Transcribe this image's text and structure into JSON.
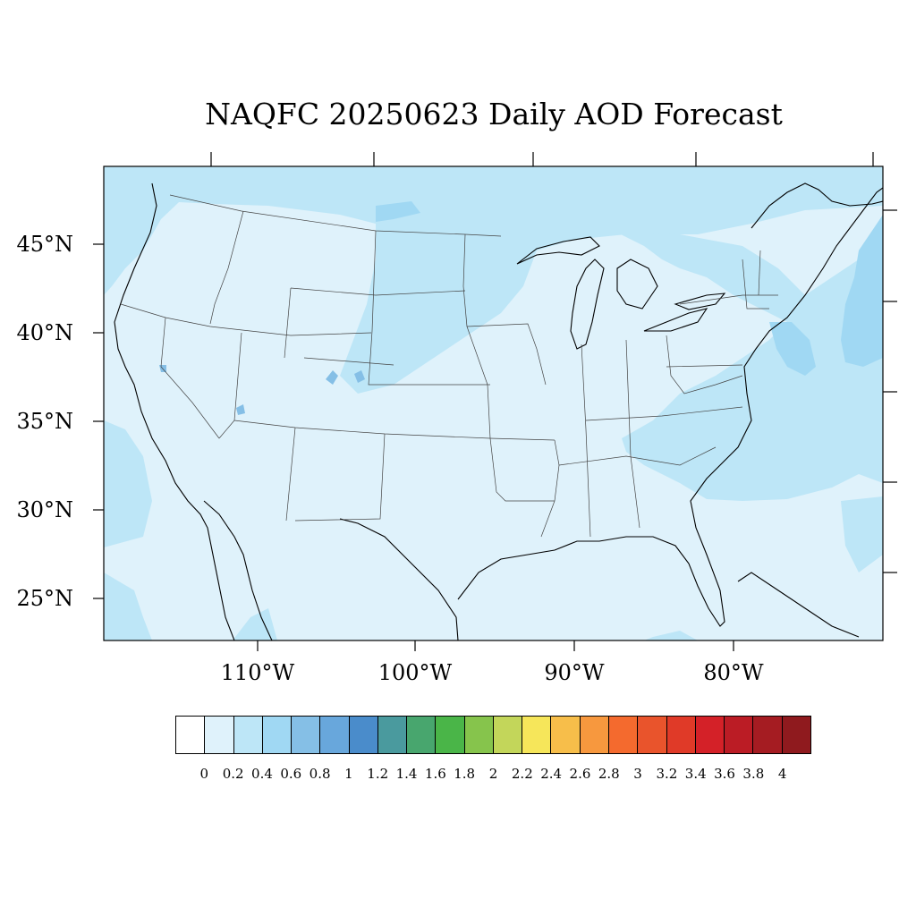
{
  "title": "NAQFC 20250623 Daily AOD Forecast",
  "lat_labels": [
    "45°N",
    "40°N",
    "35°N",
    "30°N",
    "25°N"
  ],
  "lon_labels": [
    "110°W",
    "100°W",
    "90°W",
    "80°W"
  ],
  "colorbar": {
    "labels": [
      "0",
      "0.2",
      "0.4",
      "0.6",
      "0.8",
      "1",
      "1.2",
      "1.4",
      "1.6",
      "1.8",
      "2",
      "2.2",
      "2.4",
      "2.6",
      "2.8",
      "3",
      "3.2",
      "3.4",
      "3.6",
      "3.8",
      "4"
    ],
    "colors": [
      "#ffffff",
      "#dff2fb",
      "#bde6f7",
      "#a0d8f3",
      "#85bfe6",
      "#68a7dc",
      "#4a8ccb",
      "#4a9a9e",
      "#48a66e",
      "#4ab548",
      "#86c44c",
      "#c3d65a",
      "#f6e65a",
      "#f7be4a",
      "#f7983e",
      "#f46a2e",
      "#e9542c",
      "#e03a28",
      "#d42128",
      "#bb1c25",
      "#a51c22",
      "#8f1a1e"
    ]
  },
  "map": {
    "background_color": "#dff2fb",
    "enhanced_color": "#bde6f7",
    "high_color": "#a0d8f3",
    "hotspot_color": "#85bfe6"
  }
}
